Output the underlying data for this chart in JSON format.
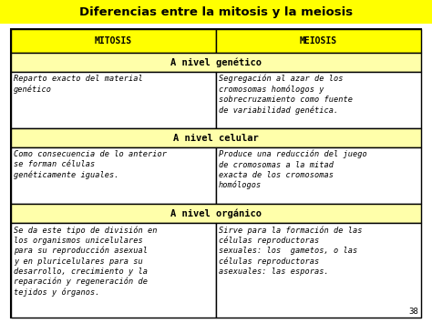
{
  "title": "Diferencias entre la mitosis y la meiosis",
  "title_bg": "#FFFF00",
  "title_fontsize": 9.5,
  "header_bg": "#FFFF00",
  "section_bg": "#FFFFAA",
  "cell_bg": "#FFFFFF",
  "border_color": "#000000",
  "table_bg": "#FFFFFF",
  "outer_bg": "#FFFFFF",
  "headers": [
    "MITOSIS",
    "MEIOSIS"
  ],
  "sections": [
    {
      "label": "A nivel genético",
      "left": "Reparto exacto del material\ngenético",
      "right": "Segregación al azar de los\ncromosomas homólogos y\nsobrecruzamiento como fuente\nde variabilidad genética."
    },
    {
      "label": "A nivel celular",
      "left": "Como consecuencia de lo anterior\nse forman células\ngenéticamente iguales.",
      "right": "Produce una reducción del juego\nde cromosomas a la mitad\nexacta de los cromosomas\nhomólogos"
    },
    {
      "label": "A nivel orgánico",
      "left": "Se da este tipo de división en\nlos organismos unicelulares\npara su reproducción asexual\ny en pluricelulares para su\ndesarrollo, crecimiento y la\nreparación y regeneración de\ntejidos y órganos.",
      "right": "Sirve para la formación de las\ncélulas reproductoras\nsexuales: los  gametos, o las\ncélulas reproductoras\nasexuales: las esporas."
    }
  ],
  "page_number": "38",
  "font_family": "monospace",
  "header_fontsize": 7.0,
  "section_fontsize": 7.5,
  "cell_fontsize": 6.2
}
